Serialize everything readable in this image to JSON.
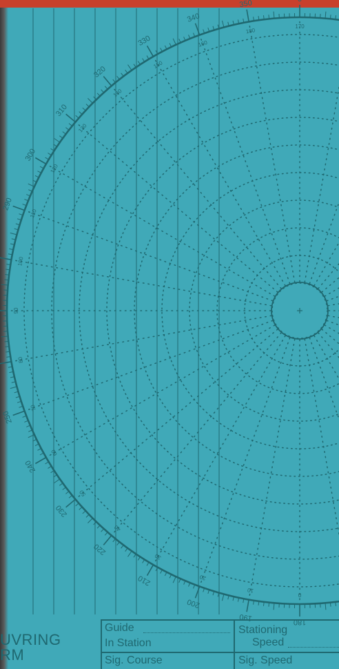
{
  "colors": {
    "paper": "#40a9b8",
    "ink": "#1f6870",
    "top_band": "#c8402c"
  },
  "outer_scale_labels": [
    "350",
    "0",
    "340",
    "330",
    "320",
    "310",
    "300",
    "290",
    "280",
    "270",
    "260",
    "250",
    "240",
    "230",
    "220",
    "210",
    "200",
    "190",
    "180"
  ],
  "inner_scale_labels": [
    "180",
    "170",
    "160",
    "150",
    "140",
    "130",
    "120",
    "110",
    "100",
    "90",
    "80",
    "70",
    "60",
    "50",
    "40",
    "30",
    "20",
    "10",
    "0"
  ],
  "form": {
    "title_line1": "UVRING",
    "title_line2": "RM",
    "guide": "Guide",
    "in_station": "In Station",
    "sig_course": "Sig. Course",
    "stationing": "Stationing",
    "speed": "Speed",
    "sig_speed": "Sig. Speed"
  }
}
